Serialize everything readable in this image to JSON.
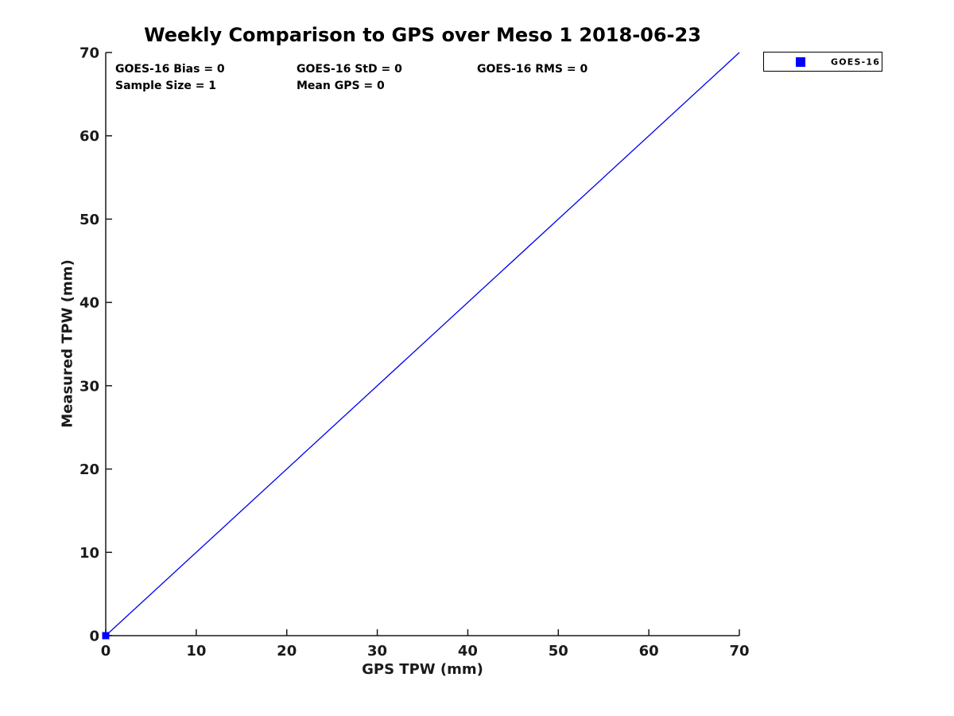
{
  "figure": {
    "background": "#ffffff"
  },
  "chart_data": {
    "type": "scatter",
    "title": "Weekly Comparison to GPS over Meso 1 2018-06-23",
    "xlabel": "GPS TPW (mm)",
    "ylabel": "Measured TPW (mm)",
    "xlim": [
      0,
      70
    ],
    "ylim": [
      0,
      70
    ],
    "xticks": [
      0,
      10,
      20,
      30,
      40,
      50,
      60,
      70
    ],
    "yticks": [
      0,
      10,
      20,
      30,
      40,
      50,
      60,
      70
    ],
    "grid": false,
    "box": false,
    "legend": {
      "position": "outside-top-right",
      "entries": [
        {
          "label": "GOES-16",
          "marker": "filled-square",
          "color": "#0000ff"
        }
      ]
    },
    "annotations": [
      {
        "text": "GOES-16 Bias = 0"
      },
      {
        "text": "GOES-16 StD = 0"
      },
      {
        "text": "GOES-16 RMS = 0"
      },
      {
        "text": "Sample Size = 1"
      },
      {
        "text": "Mean GPS = 0"
      }
    ],
    "series": [
      {
        "name": "identity-line",
        "type": "line",
        "color": "#0000ee",
        "width": 1.3,
        "points": [
          [
            0,
            0
          ],
          [
            70,
            70
          ]
        ]
      },
      {
        "name": "GOES-16",
        "type": "scatter",
        "marker": "square",
        "marker_size": 9,
        "color": "#0000ff",
        "points": [
          [
            0,
            0
          ]
        ]
      }
    ],
    "colors": {
      "axis": "#1a1a1a",
      "tick_label": "#1a1a1a",
      "title": "#000000",
      "stats_text": "#000000"
    }
  }
}
